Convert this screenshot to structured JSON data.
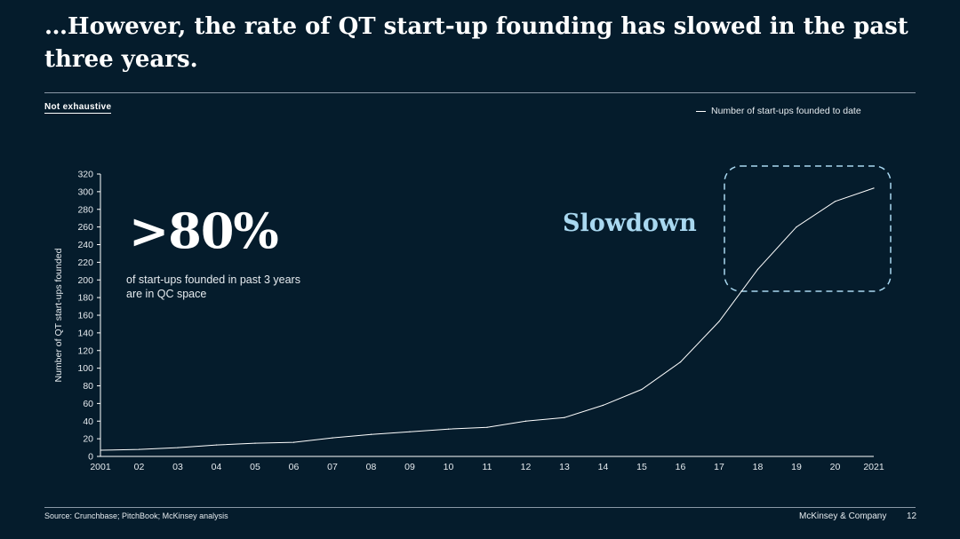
{
  "slide": {
    "title": "…However, the rate of QT start-up founding has slowed in the past three years.",
    "tag": "Not exhaustive",
    "big_stat": ">80%",
    "stat_description": "of start-ups founded in past 3 years are in QC space",
    "callout": "Slowdown",
    "source": "Source: Crunchbase; PitchBook; McKinsey analysis",
    "brand": "McKinsey & Company",
    "page_number": "12"
  },
  "colors": {
    "background": "#051c2c",
    "line": "#ffffff",
    "callout": "#a9d8f0"
  },
  "chart_data": {
    "type": "line",
    "title": "",
    "xlabel": "",
    "ylabel": "Number of QT start-ups founded",
    "ylim": [
      0,
      320
    ],
    "yticks": [
      0,
      20,
      40,
      60,
      80,
      100,
      120,
      140,
      160,
      180,
      200,
      220,
      240,
      260,
      280,
      300,
      320
    ],
    "categories": [
      "2001",
      "02",
      "03",
      "04",
      "05",
      "06",
      "07",
      "08",
      "09",
      "10",
      "11",
      "12",
      "13",
      "14",
      "15",
      "16",
      "17",
      "18",
      "19",
      "20",
      "2021"
    ],
    "series": [
      {
        "name": "Number of start-ups founded to date",
        "values": [
          7,
          8,
          10,
          13,
          15,
          16,
          21,
          25,
          28,
          31,
          33,
          40,
          44,
          58,
          76,
          107,
          153,
          212,
          260,
          289,
          304
        ]
      }
    ],
    "legend_position": "top-right",
    "grid": false
  }
}
